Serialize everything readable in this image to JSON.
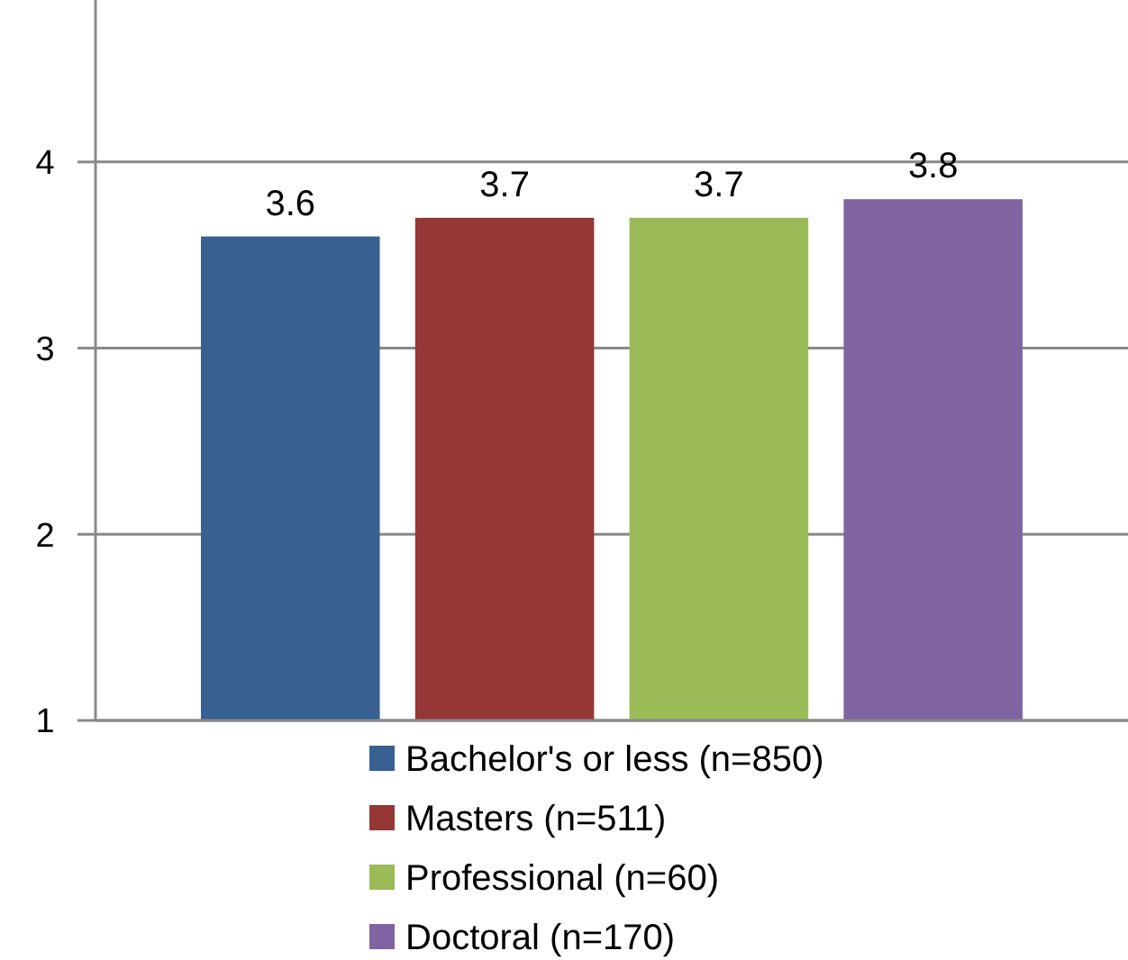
{
  "chart_data": {
    "type": "bar",
    "categories": [
      null
    ],
    "series": [
      {
        "name": "Bachelor's or less (n=850)",
        "color": "#386192",
        "values": [
          3.6
        ]
      },
      {
        "name": "Masters (n=511)",
        "color": "#953735",
        "values": [
          3.7
        ]
      },
      {
        "name": "Professional (n=60)",
        "color": "#9bbb59",
        "values": [
          3.7
        ]
      },
      {
        "name": "Doctoral (n=170)",
        "color": "#8064a2",
        "values": [
          3.8
        ]
      }
    ],
    "ylim": [
      1,
      4.87
    ],
    "yticks": [
      1,
      2,
      3,
      4
    ],
    "grid": "y",
    "legend": "bottom",
    "data_labels": true
  }
}
